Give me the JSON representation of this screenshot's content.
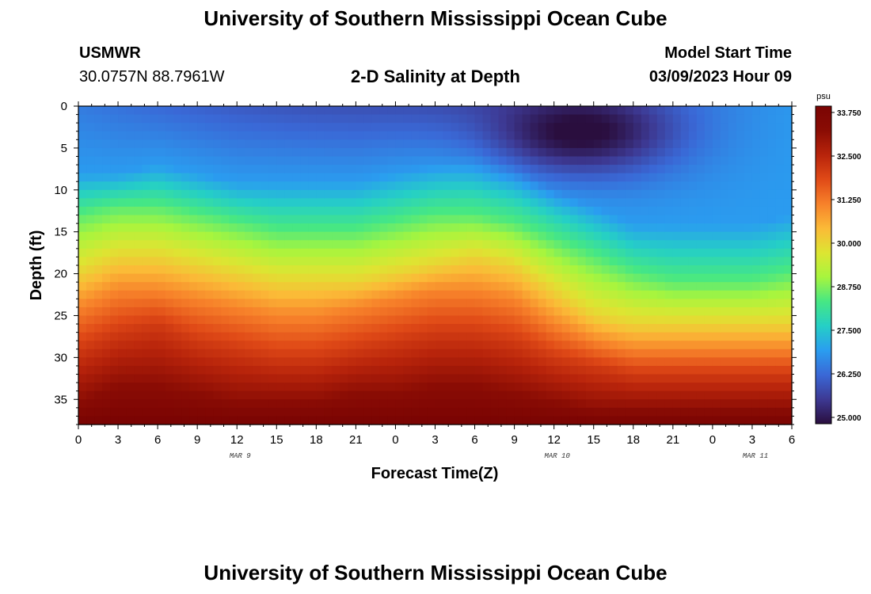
{
  "header": {
    "title": "University of Southern Mississippi Ocean Cube",
    "station": "USMWR",
    "coordinates": "30.0757N  88.7961W",
    "subtitle": "2-D Salinity at Depth",
    "model_start_label": "Model Start Time",
    "model_start_value": "03/09/2023 Hour 09"
  },
  "footer": {
    "title": "University of Southern Mississippi Ocean Cube"
  },
  "chart_data": {
    "type": "heatmap",
    "title": "2-D Salinity at Depth",
    "xlabel": "Forecast Time(Z)",
    "ylabel": "Depth (ft)",
    "x_tick_labels": [
      "0",
      "3",
      "6",
      "9",
      "12",
      "15",
      "18",
      "21",
      "0",
      "3",
      "6",
      "9",
      "12",
      "15",
      "18",
      "21",
      "0",
      "3",
      "6"
    ],
    "x_range_hours": [
      0,
      54
    ],
    "date_labels": [
      {
        "text": "MAR 9",
        "hour": 12
      },
      {
        "text": "MAR 10",
        "hour": 36
      },
      {
        "text": "MAR 11",
        "hour": 51
      }
    ],
    "y_tick_labels": [
      "0",
      "5",
      "10",
      "15",
      "20",
      "25",
      "30",
      "35"
    ],
    "y_range_ft": [
      0,
      38
    ],
    "y_inverted": true,
    "colorbar": {
      "unit": "psu",
      "min": 25.0,
      "max": 33.75,
      "tick_labels": [
        "33.750",
        "32.500",
        "31.250",
        "30.000",
        "28.750",
        "27.500",
        "26.250",
        "25.000"
      ],
      "colors": [
        "#2a0e3e",
        "#3d3993",
        "#3a68d6",
        "#2a9df0",
        "#25cfc6",
        "#46e784",
        "#a7f53e",
        "#dde532",
        "#fbba37",
        "#f7812a",
        "#e04a17",
        "#b8240b",
        "#8a0c04",
        "#7a0403"
      ]
    },
    "salinity_contours": {
      "note": "depth (ft) at which salinity first reaches each level, sampled every 3 forecast hours from hour 0 to 54",
      "levels": [
        27.0,
        28.5,
        30.0,
        31.0,
        32.0,
        33.0
      ],
      "hours": [
        0,
        3,
        6,
        9,
        12,
        15,
        18,
        21,
        24,
        27,
        30,
        33,
        36,
        39,
        42,
        45,
        48,
        51,
        54
      ],
      "depth_27_0": [
        8,
        8,
        7,
        8,
        9,
        9,
        9,
        9,
        8,
        7,
        6,
        7,
        10,
        12,
        14,
        14,
        14,
        14,
        13
      ],
      "depth_28_5": [
        13,
        12,
        12,
        13,
        14,
        15,
        15,
        15,
        14,
        13,
        13,
        14,
        16,
        18,
        20,
        21,
        21,
        21,
        20
      ],
      "depth_30_0": [
        20,
        18,
        18,
        19,
        20,
        21,
        21,
        21,
        20,
        19,
        18,
        19,
        22,
        25,
        26,
        26,
        26,
        26,
        26
      ],
      "depth_31_0": [
        24,
        22,
        22,
        23,
        24,
        25,
        25,
        24,
        23,
        22,
        22,
        23,
        26,
        28,
        29,
        29,
        29,
        29,
        29
      ],
      "depth_32_0": [
        29,
        27,
        26,
        28,
        29,
        30,
        30,
        29,
        28,
        27,
        27,
        28,
        30,
        31,
        32,
        32,
        32,
        32,
        32
      ],
      "depth_33_0": [
        35,
        33,
        33,
        34,
        35,
        35,
        35,
        34,
        34,
        33,
        33,
        34,
        35,
        36,
        36,
        36,
        36,
        36,
        36
      ]
    },
    "low_salinity_core": {
      "hour": 38,
      "depth_ft": 3,
      "value": 24.8
    }
  }
}
